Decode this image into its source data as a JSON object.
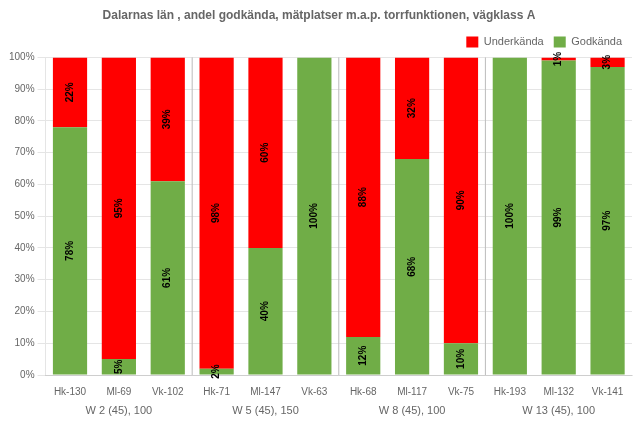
{
  "chart_data": {
    "type": "bar",
    "title": "Dalarnas län , andel godkända, mätplatser m.a.p. torrfunktionen, vägklass A",
    "categories": [
      "Hk-130",
      "Ml-69",
      "Vk-102",
      "Hk-71",
      "Ml-147",
      "Vk-63",
      "Hk-68",
      "Ml-117",
      "Vk-75",
      "Hk-193",
      "Ml-132",
      "Vk-141"
    ],
    "groups": [
      {
        "label": "W 2 (45), 100",
        "categories": [
          "Hk-130",
          "Ml-69",
          "Vk-102"
        ]
      },
      {
        "label": "W 5 (45), 150",
        "categories": [
          "Hk-71",
          "Ml-147",
          "Vk-63"
        ]
      },
      {
        "label": "W 8 (45), 100",
        "categories": [
          "Hk-68",
          "Ml-117",
          "Vk-75"
        ]
      },
      {
        "label": "W 13 (45), 100",
        "categories": [
          "Hk-193",
          "Ml-132",
          "Vk-141"
        ]
      }
    ],
    "series": [
      {
        "name": "Godkända",
        "color": "#70AD47",
        "values": [
          78,
          5,
          61,
          2,
          40,
          100,
          12,
          68,
          10,
          100,
          99,
          97
        ],
        "value_labels": [
          "78%",
          "5%",
          "61%",
          "2%",
          "40%",
          "100%",
          "12%",
          "68%",
          "10%",
          "100%",
          "99%",
          "97%"
        ]
      },
      {
        "name": "Underkända",
        "color": "#FF0000",
        "values": [
          22,
          95,
          39,
          98,
          60,
          0,
          88,
          32,
          90,
          0,
          1,
          3
        ],
        "value_labels": [
          "22%",
          "95%",
          "39%",
          "98%",
          "60%",
          null,
          "88%",
          "32%",
          "90%",
          null,
          "1%",
          "3%"
        ]
      }
    ],
    "stacked": true,
    "data_labels": true,
    "ylim": [
      0,
      100
    ],
    "yticks": [
      {
        "value": 0,
        "label": "0%"
      },
      {
        "value": 10,
        "label": "10%"
      },
      {
        "value": 20,
        "label": "20%"
      },
      {
        "value": 30,
        "label": "30%"
      },
      {
        "value": 40,
        "label": "40%"
      },
      {
        "value": 50,
        "label": "50%"
      },
      {
        "value": 60,
        "label": "60%"
      },
      {
        "value": 70,
        "label": "70%"
      },
      {
        "value": 80,
        "label": "80%"
      },
      {
        "value": 90,
        "label": "90%"
      },
      {
        "value": 100,
        "label": "100%"
      }
    ],
    "grid": true,
    "legend": "upper right"
  }
}
